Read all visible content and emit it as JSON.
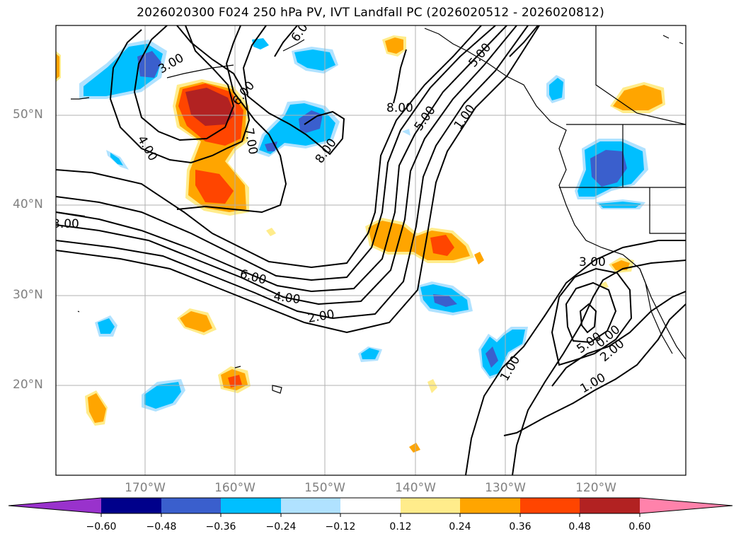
{
  "figure": {
    "title": "2026020300 F024 250 hPa PV, IVT Landfall PC (2026020512 - 2026020812)"
  },
  "axes": {
    "lat_labels": [
      "50°N",
      "40°N",
      "30°N",
      "20°N"
    ],
    "lon_labels": [
      "170°W",
      "160°W",
      "150°W",
      "140°W",
      "130°W",
      "120°W"
    ]
  },
  "contour_labels": [
    "3.00",
    "4.00",
    "6.00",
    "7.00",
    "8.00",
    "8.00",
    "5.00",
    "1.00",
    "6.00",
    "4.00",
    "2.00",
    "3.00",
    "1.00",
    "5.00",
    "2.00",
    "1.00",
    "3.00",
    "5.00",
    "6.00",
    "0.00"
  ],
  "colorbar": {
    "ticks": [
      "−0.60",
      "−0.48",
      "−0.36",
      "−0.24",
      "−0.12",
      "0.12",
      "0.24",
      "0.36",
      "0.48",
      "0.60"
    ],
    "colors": [
      "#9932cc",
      "#00008b",
      "#3a5fcd",
      "#00bfff",
      "#b0e2ff",
      "#ffffff",
      "#ffec8b",
      "#ffa500",
      "#ff4500",
      "#b22222",
      "#ff82ab"
    ]
  },
  "colors": {
    "neg_strong": "#3a5fcd",
    "neg_mid": "#00bfff",
    "neg_weak": "#b0e2ff",
    "pos_weak": "#ffec8b",
    "pos_mid": "#ffa500",
    "pos_strong": "#ff4500",
    "pos_max": "#b22222",
    "grid": "#b0b0b0"
  }
}
